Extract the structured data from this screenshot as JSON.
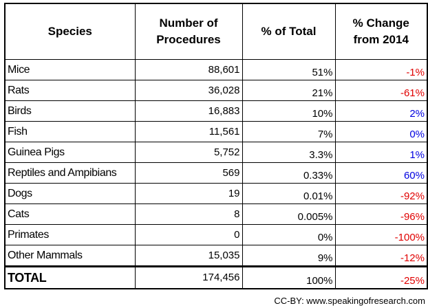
{
  "chart_data": {
    "type": "table",
    "columns": [
      "Species",
      "Number of Procedures",
      "% of Total",
      "% Change from 2014"
    ],
    "rows": [
      {
        "species": "Mice",
        "procedures": "88,601",
        "percent_total": "51%",
        "change": "-1%",
        "change_color": "#e00000"
      },
      {
        "species": "Rats",
        "procedures": "36,028",
        "percent_total": "21%",
        "change": "-61%",
        "change_color": "#e00000"
      },
      {
        "species": "Birds",
        "procedures": "16,883",
        "percent_total": "10%",
        "change": "2%",
        "change_color": "#0000e0"
      },
      {
        "species": "Fish",
        "procedures": "11,561",
        "percent_total": "7%",
        "change": "0%",
        "change_color": "#0000e0"
      },
      {
        "species": "Guinea Pigs",
        "procedures": "5,752",
        "percent_total": "3.3%",
        "change": "1%",
        "change_color": "#0000e0"
      },
      {
        "species": "Reptiles and Ampibians",
        "procedures": "569",
        "percent_total": "0.33%",
        "change": "60%",
        "change_color": "#0000e0"
      },
      {
        "species": "Dogs",
        "procedures": "19",
        "percent_total": "0.01%",
        "change": "-92%",
        "change_color": "#e00000"
      },
      {
        "species": "Cats",
        "procedures": "8",
        "percent_total": "0.005%",
        "change": "-96%",
        "change_color": "#e00000"
      },
      {
        "species": "Primates",
        "procedures": "0",
        "percent_total": "0%",
        "change": "-100%",
        "change_color": "#e00000"
      },
      {
        "species": "Other Mammals",
        "procedures": "15,035",
        "percent_total": "9%",
        "change": "-12%",
        "change_color": "#e00000"
      }
    ],
    "total": {
      "species": "TOTAL",
      "procedures": "174,456",
      "percent_total": "100%",
      "change": "-25%",
      "change_color": "#e00000"
    }
  },
  "caption": "CC-BY: www.speakingofresearch.com"
}
